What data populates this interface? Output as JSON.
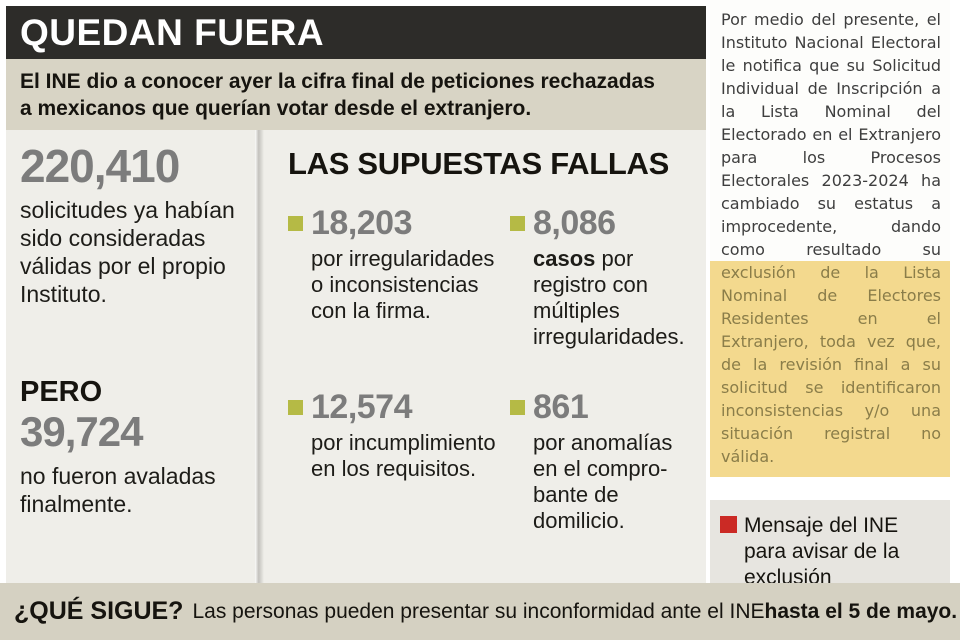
{
  "header": {
    "title": "QUEDAN FUERA",
    "subtitle_line1": "El INE dio a conocer ayer la cifra final de peticiones rechazadas",
    "subtitle_line2": "a mexicanos que querían votar desde el extranjero."
  },
  "left_stats": {
    "approved_number": "220,410",
    "approved_text": "solicitudes ya habían sido consideradas válidas por el propio Instituto.",
    "pero_label": "PERO",
    "rejected_number": "39,724",
    "rejected_text": "no fueron avaladas finalmente."
  },
  "fallas": {
    "title": "LAS SUPUESTAS FALLAS",
    "items": [
      {
        "number": "18,203",
        "bold": "",
        "text": "por irregularidades o inconsistencias con la firma."
      },
      {
        "number": "8,086",
        "bold": "casos",
        "text": " por registro con múltiples irregularidades."
      },
      {
        "number": "12,574",
        "bold": "",
        "text": "por incumplimiento en los requisitos."
      },
      {
        "number": "861",
        "bold": "",
        "text": "por anomalías en el compro-bante de domilicio."
      }
    ]
  },
  "letter": {
    "normal": "Por medio del presente, el Instituto Nacional Electoral le notifica que su Solicitud Individual de Inscripción a la Lista Nominal del Electorado en el Extranjero para los Procesos Electorales 2023-2024 ha cambiado su estatus a improcedente, dando como resultado su",
    "highlight": "exclusión de la Lista Nominal de Electores Residentes en el Extranjero, toda vez que, de la revisión final a su solicitud se identificaron inconsistencias y/o una situación registral no válida."
  },
  "caption": {
    "text": "Mensaje del INE para avisar de la exclusión"
  },
  "footer": {
    "question": "¿QUÉ SIGUE?",
    "text": "Las personas pueden presentar su inconformidad ante el INE ",
    "bold": "hasta el 5 de mayo."
  },
  "colors": {
    "accent_olive": "#b5ba45",
    "accent_red": "#cb2a25",
    "highlight_yellow": "#f3d98e",
    "header_black": "#2d2c29",
    "band_beige": "#d8d4c5",
    "panel_gray": "#efeee9",
    "number_gray": "#7c7c7c"
  },
  "chart_data": {
    "type": "table",
    "title": "QUEDAN FUERA — LAS SUPUESTAS FALLAS",
    "categories": [
      "Solicitudes consideradas válidas por el Instituto",
      "No avaladas finalmente",
      "Por irregularidades o inconsistencias con la firma",
      "Casos por registro con múltiples irregularidades",
      "Por incumplimiento en los requisitos",
      "Por anomalías en el comprobante de domicilio"
    ],
    "values": [
      220410,
      39724,
      18203,
      8086,
      12574,
      861
    ]
  }
}
